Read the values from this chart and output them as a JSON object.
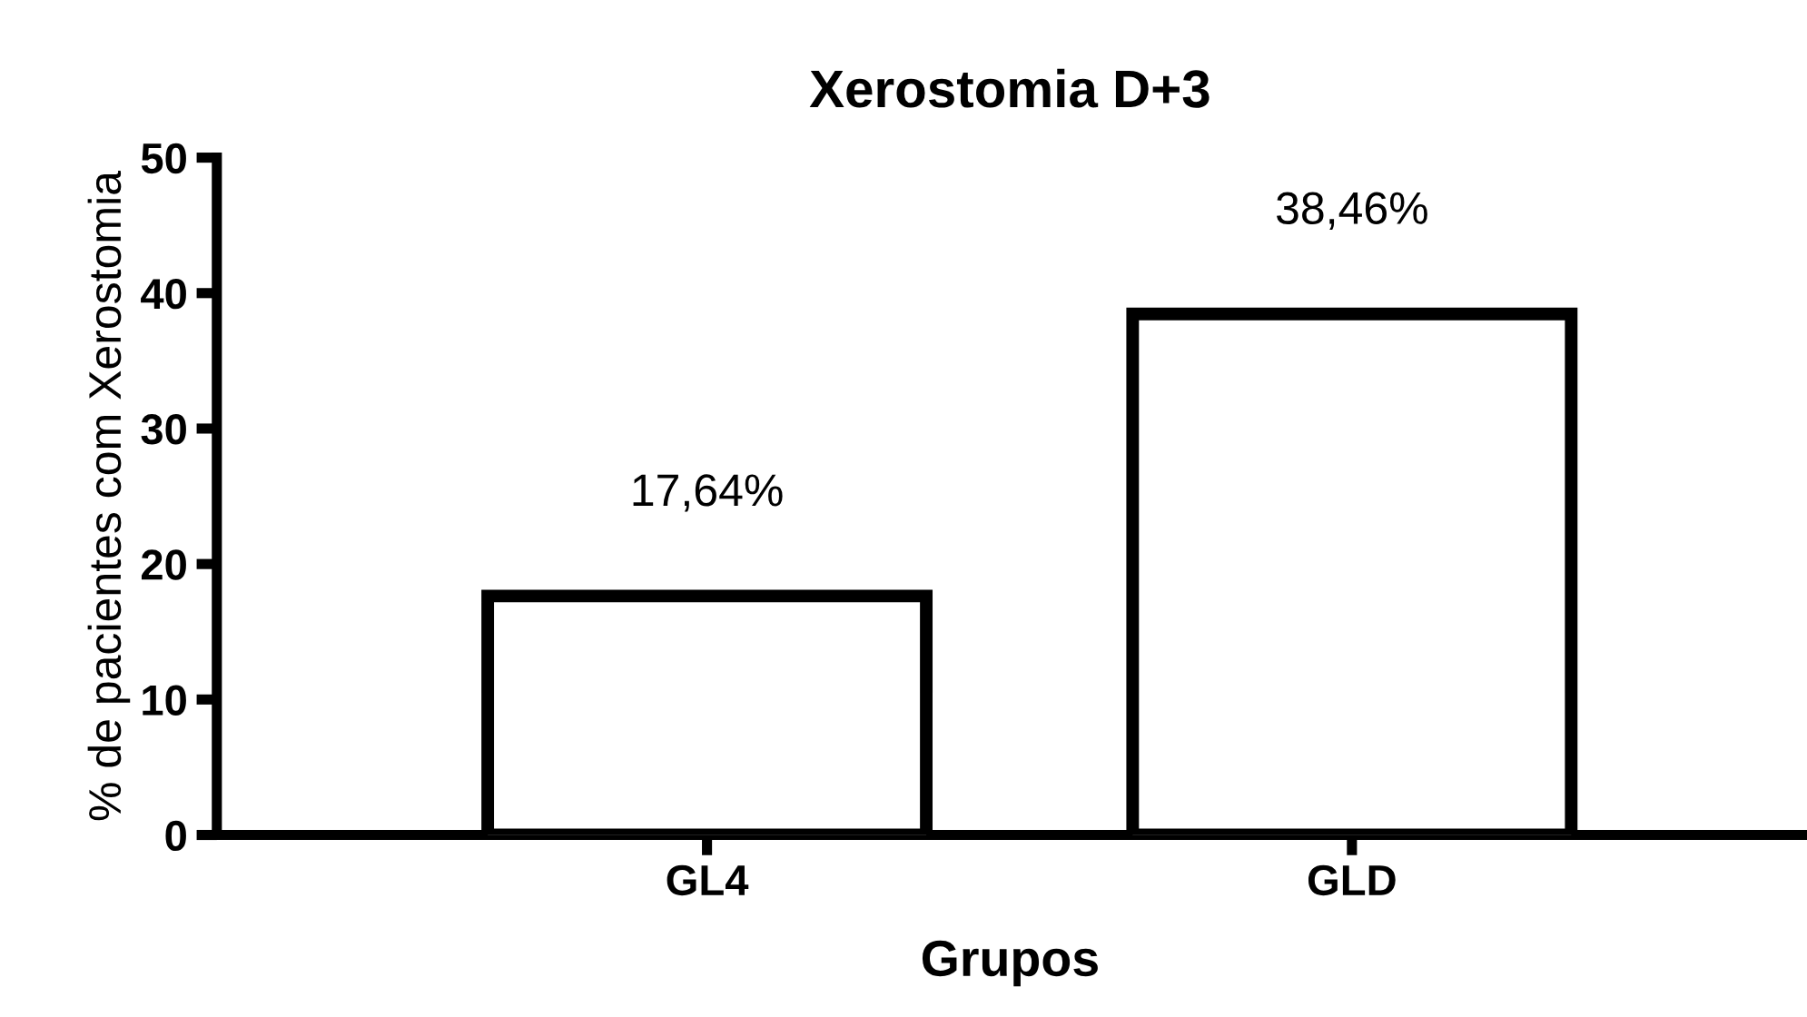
{
  "chart_data": {
    "type": "bar",
    "title": "Xerostomia D+3",
    "xlabel": "Grupos",
    "ylabel": "% de pacientes com Xerostomia",
    "categories": [
      "GL4",
      "GLD"
    ],
    "values": [
      17.64,
      38.46
    ],
    "value_labels": [
      "17,64%",
      "38,46%"
    ],
    "color": "#ffffff",
    "ylim": [
      0,
      50
    ],
    "yticks": [
      0,
      10,
      20,
      30,
      40,
      50
    ],
    "grid": false,
    "legend": false
  }
}
